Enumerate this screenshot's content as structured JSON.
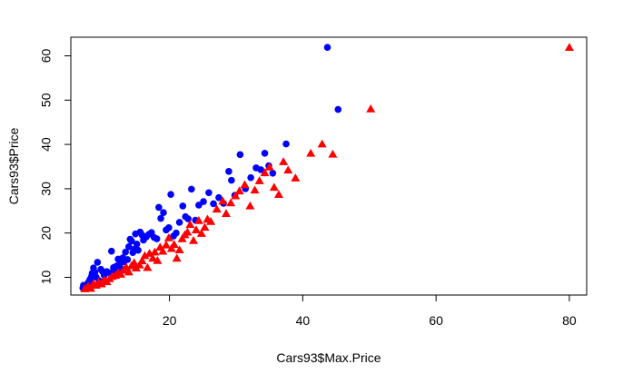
{
  "chart_data": {
    "type": "scatter",
    "title": "",
    "xlabel": "Cars93$Max.Price",
    "ylabel": "Cars93$Price",
    "xlim": [
      5.2,
      82.6
    ],
    "ylim": [
      6.0,
      64.2
    ],
    "xticks": [
      20,
      40,
      60,
      80
    ],
    "yticks": [
      10,
      20,
      30,
      40,
      50,
      60
    ],
    "grid": false,
    "legend": "none",
    "series": [
      {
        "marker": "circle",
        "color": "#0000ff",
        "points": [
          [
            7.0,
            7.6
          ],
          [
            7.1,
            8.2
          ],
          [
            7.3,
            7.8
          ],
          [
            7.6,
            8.4
          ],
          [
            7.9,
            9.0
          ],
          [
            8.1,
            9.6
          ],
          [
            8.3,
            10.2
          ],
          [
            8.4,
            10.9
          ],
          [
            8.6,
            12.1
          ],
          [
            8.8,
            11.1
          ],
          [
            9.0,
            10.0
          ],
          [
            9.2,
            13.4
          ],
          [
            9.5,
            9.2
          ],
          [
            9.7,
            11.8
          ],
          [
            9.9,
            11.4
          ],
          [
            10.2,
            10.5
          ],
          [
            10.6,
            11.3
          ],
          [
            11.0,
            11.0
          ],
          [
            11.3,
            15.9
          ],
          [
            11.6,
            12.2
          ],
          [
            11.8,
            11.5
          ],
          [
            12.0,
            12.5
          ],
          [
            12.3,
            14.1
          ],
          [
            12.5,
            13.0
          ],
          [
            12.8,
            11.9
          ],
          [
            13.0,
            14.4
          ],
          [
            13.2,
            13.5
          ],
          [
            13.4,
            15.7
          ],
          [
            13.7,
            14.0
          ],
          [
            13.9,
            16.9
          ],
          [
            14.1,
            18.6
          ],
          [
            14.3,
            18.2
          ],
          [
            14.5,
            15.6
          ],
          [
            14.7,
            16.3
          ],
          [
            14.9,
            19.8
          ],
          [
            15.1,
            17.5
          ],
          [
            15.3,
            16.1
          ],
          [
            15.6,
            20.2
          ],
          [
            15.9,
            19.5
          ],
          [
            16.1,
            18.4
          ],
          [
            16.5,
            19.1
          ],
          [
            16.9,
            19.7
          ],
          [
            17.3,
            20.1
          ],
          [
            17.7,
            19.0
          ],
          [
            18.1,
            18.7
          ],
          [
            18.4,
            25.8
          ],
          [
            18.7,
            23.3
          ],
          [
            19.1,
            24.6
          ],
          [
            19.5,
            20.7
          ],
          [
            19.9,
            21.2
          ],
          [
            20.2,
            28.7
          ],
          [
            20.6,
            19.3
          ],
          [
            21.0,
            20.0
          ],
          [
            21.5,
            22.4
          ],
          [
            22.0,
            26.1
          ],
          [
            22.4,
            23.7
          ],
          [
            22.8,
            23.2
          ],
          [
            23.3,
            29.9
          ],
          [
            23.9,
            22.9
          ],
          [
            24.4,
            26.3
          ],
          [
            25.1,
            27.1
          ],
          [
            25.9,
            29.1
          ],
          [
            26.6,
            26.6
          ],
          [
            27.4,
            28.0
          ],
          [
            28.1,
            26.7
          ],
          [
            28.9,
            33.9
          ],
          [
            29.3,
            31.9
          ],
          [
            29.8,
            28.5
          ],
          [
            30.6,
            37.7
          ],
          [
            31.4,
            30.0
          ],
          [
            32.2,
            32.5
          ],
          [
            33.0,
            34.7
          ],
          [
            33.7,
            34.3
          ],
          [
            34.3,
            38.0
          ],
          [
            34.9,
            35.2
          ],
          [
            35.5,
            33.5
          ],
          [
            37.5,
            40.1
          ],
          [
            43.7,
            61.9
          ],
          [
            45.3,
            47.9
          ]
        ]
      },
      {
        "marker": "triangle",
        "color": "#ff0000",
        "points": [
          [
            7.3,
            7.4
          ],
          [
            7.8,
            8.0
          ],
          [
            8.2,
            7.5
          ],
          [
            8.6,
            8.6
          ],
          [
            9.0,
            8.2
          ],
          [
            9.4,
            8.9
          ],
          [
            9.8,
            8.5
          ],
          [
            10.2,
            9.4
          ],
          [
            10.6,
            9.0
          ],
          [
            11.0,
            9.7
          ],
          [
            11.4,
            10.2
          ],
          [
            11.9,
            10.4
          ],
          [
            12.3,
            11.0
          ],
          [
            12.7,
            10.7
          ],
          [
            13.1,
            11.6
          ],
          [
            13.5,
            12.3
          ],
          [
            13.9,
            11.2
          ],
          [
            14.3,
            12.6
          ],
          [
            14.7,
            13.3
          ],
          [
            15.0,
            12.1
          ],
          [
            15.5,
            12.8
          ],
          [
            15.9,
            13.7
          ],
          [
            16.3,
            14.9
          ],
          [
            16.7,
            12.2
          ],
          [
            17.0,
            15.4
          ],
          [
            17.5,
            14.3
          ],
          [
            17.8,
            15.7
          ],
          [
            18.2,
            13.8
          ],
          [
            18.6,
            16.8
          ],
          [
            19.0,
            15.9
          ],
          [
            19.5,
            17.3
          ],
          [
            19.9,
            18.9
          ],
          [
            20.3,
            16.5
          ],
          [
            20.7,
            17.4
          ],
          [
            21.1,
            14.3
          ],
          [
            21.5,
            16.2
          ],
          [
            21.9,
            18.7
          ],
          [
            22.3,
            19.6
          ],
          [
            22.7,
            20.2
          ],
          [
            23.1,
            21.9
          ],
          [
            23.6,
            18.3
          ],
          [
            24.0,
            20.7
          ],
          [
            24.4,
            22.8
          ],
          [
            24.8,
            19.9
          ],
          [
            25.3,
            21.3
          ],
          [
            25.7,
            23.1
          ],
          [
            26.2,
            22.6
          ],
          [
            27.1,
            25.4
          ],
          [
            28.0,
            27.2
          ],
          [
            28.5,
            24.4
          ],
          [
            29.2,
            26.8
          ],
          [
            29.9,
            28.4
          ],
          [
            30.5,
            29.5
          ],
          [
            31.3,
            30.9
          ],
          [
            32.1,
            26.1
          ],
          [
            32.8,
            29.7
          ],
          [
            33.5,
            31.8
          ],
          [
            34.3,
            33.6
          ],
          [
            35.0,
            34.9
          ],
          [
            35.7,
            30.3
          ],
          [
            36.4,
            28.7
          ],
          [
            37.1,
            36.1
          ],
          [
            37.8,
            34.2
          ],
          [
            38.9,
            32.4
          ],
          [
            41.2,
            38.0
          ],
          [
            42.9,
            40.1
          ],
          [
            44.5,
            37.8
          ],
          [
            50.2,
            48.0
          ],
          [
            80.0,
            61.9
          ]
        ]
      }
    ]
  }
}
